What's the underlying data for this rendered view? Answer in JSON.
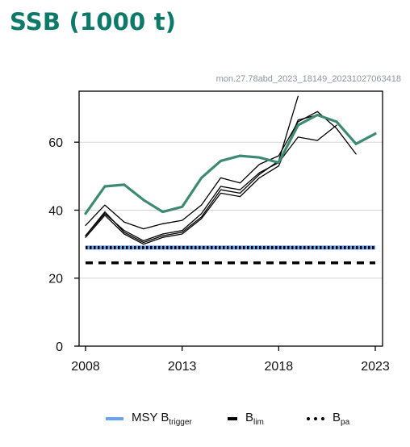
{
  "title": "SSB (1000 t)",
  "watermark": "mon.27.78abd_2023_18149_20231027063418",
  "colors": {
    "title": "#0c7a68",
    "assessment": "#3d8a73",
    "retro": "#000000",
    "msy_btrigger": "#6aa1f2",
    "blim": "#000000",
    "bpa": "#000000",
    "grid": "#d3d3d3"
  },
  "legend": {
    "msy_prefix": "MSY B",
    "msy_sub": "trigger",
    "blim_prefix": "B",
    "blim_sub": "lim",
    "bpa_prefix": "B",
    "bpa_sub": "pa"
  },
  "chart_data": {
    "type": "line",
    "title": "SSB (1000 t)",
    "xlim": [
      2008,
      2023
    ],
    "ylim": [
      0,
      75
    ],
    "xticks": [
      2008,
      2013,
      2018,
      2023
    ],
    "yticks": [
      0,
      20,
      40,
      60
    ],
    "grid": "horizontal",
    "legend_position": "bottom",
    "series": [
      {
        "kind": "assessment",
        "x": [
          2008,
          2009,
          2010,
          2011,
          2012,
          2013,
          2014,
          2015,
          2016,
          2017,
          2018,
          2019,
          2020,
          2021,
          2022,
          2023
        ],
        "values": [
          39,
          47,
          47.5,
          43,
          39.5,
          41,
          49.5,
          54.5,
          56,
          55.5,
          54,
          65,
          68,
          66,
          59.5,
          62.5
        ]
      },
      {
        "kind": "retrospective",
        "x": [
          2008,
          2009,
          2010,
          2011,
          2012,
          2013,
          2014,
          2015,
          2016,
          2017,
          2018,
          2019,
          2020,
          2021,
          2022
        ],
        "values": [
          35.5,
          41.5,
          36.5,
          34.5,
          36,
          37,
          41.5,
          49.5,
          48,
          53.5,
          56,
          66,
          69,
          64,
          56.5
        ]
      },
      {
        "kind": "retrospective",
        "x": [
          2008,
          2009,
          2010,
          2011,
          2012,
          2013,
          2014,
          2015,
          2016,
          2017,
          2018,
          2019,
          2020,
          2021
        ],
        "values": [
          32.5,
          39,
          34,
          31,
          33,
          34,
          39,
          47,
          46,
          51,
          54,
          61.5,
          60.5,
          65
        ]
      },
      {
        "kind": "retrospective",
        "x": [
          2008,
          2009,
          2010,
          2011,
          2012,
          2013,
          2014,
          2015,
          2016,
          2017,
          2018,
          2019,
          2020
        ],
        "values": [
          32,
          38.5,
          33,
          30,
          32,
          33,
          37.5,
          45,
          44,
          49.5,
          53,
          66.5,
          68
        ]
      },
      {
        "kind": "retrospective",
        "x": [
          2008,
          2009,
          2010,
          2011,
          2012,
          2013,
          2014,
          2015,
          2016,
          2017,
          2018,
          2019
        ],
        "values": [
          32.5,
          39.5,
          33.5,
          30.5,
          32.5,
          33.5,
          38,
          46,
          45,
          50.5,
          54.5,
          73.5
        ]
      }
    ],
    "reference_lines": [
      {
        "name": "MSY Btrigger",
        "value": 29,
        "style": "solid"
      },
      {
        "name": "Bpa",
        "value": 29,
        "style": "dotted"
      },
      {
        "name": "Blim",
        "value": 24.5,
        "style": "dashed"
      }
    ]
  }
}
